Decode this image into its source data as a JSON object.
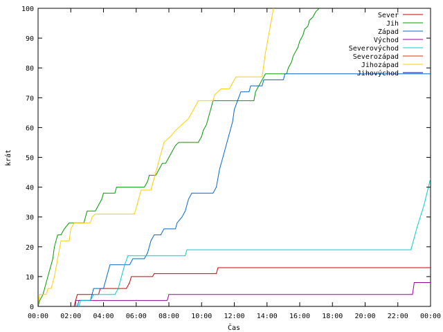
{
  "chart_data": {
    "type": "line",
    "title": "",
    "xlabel": "Čas",
    "ylabel": "krát",
    "xlim": [
      "00:00",
      "24:00"
    ],
    "ylim": [
      0,
      100
    ],
    "grid": false,
    "legend_position": "top-right",
    "x_ticks": [
      {
        "h": 0,
        "label": "00:00"
      },
      {
        "h": 2,
        "label": "02:00"
      },
      {
        "h": 4,
        "label": "04:00"
      },
      {
        "h": 6,
        "label": "06:00"
      },
      {
        "h": 8,
        "label": "08:00"
      },
      {
        "h": 10,
        "label": "10:00"
      },
      {
        "h": 12,
        "label": "12:00"
      },
      {
        "h": 14,
        "label": "14:00"
      },
      {
        "h": 16,
        "label": "16:00"
      },
      {
        "h": 18,
        "label": "18:00"
      },
      {
        "h": 20,
        "label": "20:00"
      },
      {
        "h": 22,
        "label": "22:00"
      },
      {
        "h": 24,
        "label": "00:00"
      }
    ],
    "y_ticks": [
      0,
      10,
      20,
      30,
      40,
      50,
      60,
      70,
      80,
      90,
      100
    ],
    "series": [
      {
        "name": "Sever",
        "color": "#cc0000",
        "points": [
          [
            2.2,
            0
          ],
          [
            2.3,
            2
          ],
          [
            2.4,
            4
          ],
          [
            3.7,
            4
          ],
          [
            3.8,
            6
          ],
          [
            5.4,
            6
          ],
          [
            5.6,
            8
          ],
          [
            5.7,
            10
          ],
          [
            7.0,
            10
          ],
          [
            7.1,
            11
          ],
          [
            10.9,
            11
          ],
          [
            11.0,
            13
          ],
          [
            24,
            13
          ]
        ]
      },
      {
        "name": "Jih",
        "color": "#009900",
        "points": [
          [
            0,
            0
          ],
          [
            0.1,
            2
          ],
          [
            0.3,
            4
          ],
          [
            0.5,
            8
          ],
          [
            0.7,
            12
          ],
          [
            0.9,
            16
          ],
          [
            1.0,
            20
          ],
          [
            1.2,
            24
          ],
          [
            1.4,
            24
          ],
          [
            1.6,
            26
          ],
          [
            1.9,
            28
          ],
          [
            2.8,
            28
          ],
          [
            2.9,
            30
          ],
          [
            3.0,
            32
          ],
          [
            3.5,
            32
          ],
          [
            3.7,
            34
          ],
          [
            3.9,
            36
          ],
          [
            4.0,
            38
          ],
          [
            4.7,
            38
          ],
          [
            4.8,
            40
          ],
          [
            6.5,
            40
          ],
          [
            6.7,
            42
          ],
          [
            6.8,
            44
          ],
          [
            7.2,
            44
          ],
          [
            7.4,
            46
          ],
          [
            7.6,
            48
          ],
          [
            7.8,
            48
          ],
          [
            8.0,
            50
          ],
          [
            8.2,
            52
          ],
          [
            8.4,
            54
          ],
          [
            8.6,
            55
          ],
          [
            9.8,
            55
          ],
          [
            10.0,
            57
          ],
          [
            10.1,
            59
          ],
          [
            10.3,
            61
          ],
          [
            10.5,
            65
          ],
          [
            10.7,
            69
          ],
          [
            13.2,
            69
          ],
          [
            13.3,
            72
          ],
          [
            13.5,
            74
          ],
          [
            13.7,
            76
          ],
          [
            13.9,
            78
          ],
          [
            15.2,
            78
          ],
          [
            15.3,
            80
          ],
          [
            15.5,
            82
          ],
          [
            15.6,
            84
          ],
          [
            15.7,
            85
          ],
          [
            15.9,
            87
          ],
          [
            16.0,
            89
          ],
          [
            16.2,
            91
          ],
          [
            16.3,
            93
          ],
          [
            16.5,
            94
          ],
          [
            16.6,
            96
          ],
          [
            16.8,
            97
          ],
          [
            17.0,
            99
          ],
          [
            17.2,
            100
          ]
        ]
      },
      {
        "name": "Západ",
        "color": "#0066cc",
        "points": [
          [
            2.4,
            0
          ],
          [
            2.5,
            2
          ],
          [
            3.2,
            2
          ],
          [
            3.4,
            6
          ],
          [
            4.0,
            6
          ],
          [
            4.2,
            10
          ],
          [
            4.4,
            14
          ],
          [
            5.6,
            14
          ],
          [
            5.8,
            16
          ],
          [
            6.5,
            16
          ],
          [
            6.7,
            18
          ],
          [
            6.9,
            22
          ],
          [
            7.1,
            24
          ],
          [
            7.5,
            24
          ],
          [
            7.7,
            26
          ],
          [
            8.4,
            26
          ],
          [
            8.5,
            28
          ],
          [
            8.8,
            30
          ],
          [
            9.0,
            32
          ],
          [
            9.2,
            36
          ],
          [
            9.4,
            38
          ],
          [
            10.7,
            38
          ],
          [
            10.9,
            40
          ],
          [
            11.1,
            46
          ],
          [
            11.3,
            50
          ],
          [
            11.5,
            54
          ],
          [
            11.7,
            58
          ],
          [
            11.9,
            62
          ],
          [
            12.0,
            66
          ],
          [
            12.2,
            69
          ],
          [
            12.4,
            72
          ],
          [
            12.9,
            72
          ],
          [
            13.0,
            74
          ],
          [
            13.7,
            74
          ],
          [
            13.8,
            76
          ],
          [
            15.0,
            76
          ],
          [
            15.1,
            78
          ],
          [
            24,
            78
          ]
        ]
      },
      {
        "name": "Východ",
        "color": "#990099",
        "points": [
          [
            2.3,
            0
          ],
          [
            2.3,
            2
          ],
          [
            7.9,
            2
          ],
          [
            8.0,
            4
          ],
          [
            22.9,
            4
          ],
          [
            23.0,
            8
          ],
          [
            24,
            8
          ]
        ]
      },
      {
        "name": "Severovýchod",
        "color": "#00cccc",
        "points": [
          [
            2.5,
            0
          ],
          [
            2.6,
            2
          ],
          [
            3.2,
            2
          ],
          [
            3.4,
            4
          ],
          [
            4.7,
            4
          ],
          [
            4.9,
            6
          ],
          [
            5.1,
            10
          ],
          [
            5.3,
            14
          ],
          [
            5.5,
            17
          ],
          [
            9.0,
            17
          ],
          [
            9.1,
            19
          ],
          [
            22.8,
            19
          ],
          [
            23.2,
            27
          ],
          [
            23.6,
            34
          ],
          [
            24,
            43
          ]
        ]
      },
      {
        "name": "Severozápad",
        "color": "#cc3300",
        "points": []
      },
      {
        "name": "Jihozápad",
        "color": "#ffcc00",
        "points": [
          [
            0,
            0
          ],
          [
            0.1,
            4
          ],
          [
            0.5,
            4
          ],
          [
            0.6,
            6
          ],
          [
            0.8,
            6
          ],
          [
            1.0,
            10
          ],
          [
            1.2,
            16
          ],
          [
            1.4,
            22
          ],
          [
            1.9,
            22
          ],
          [
            2.0,
            26
          ],
          [
            2.2,
            28
          ],
          [
            3.2,
            28
          ],
          [
            3.3,
            30
          ],
          [
            3.5,
            31
          ],
          [
            5.9,
            31
          ],
          [
            6.1,
            35
          ],
          [
            6.3,
            39
          ],
          [
            6.9,
            39
          ],
          [
            7.1,
            43
          ],
          [
            7.3,
            47
          ],
          [
            7.7,
            55
          ],
          [
            8.1,
            57
          ],
          [
            8.4,
            59
          ],
          [
            8.8,
            61
          ],
          [
            9.2,
            63
          ],
          [
            9.4,
            65
          ],
          [
            9.6,
            67
          ],
          [
            9.8,
            69
          ],
          [
            10.7,
            69
          ],
          [
            10.8,
            71
          ],
          [
            11.2,
            73
          ],
          [
            11.7,
            73
          ],
          [
            11.9,
            75
          ],
          [
            12.1,
            77
          ],
          [
            13.7,
            77
          ],
          [
            13.9,
            85
          ],
          [
            14.1,
            91
          ],
          [
            14.3,
            97
          ],
          [
            14.4,
            100
          ]
        ]
      },
      {
        "name": "Jihovýchod",
        "color": "#000099",
        "points": []
      }
    ]
  }
}
